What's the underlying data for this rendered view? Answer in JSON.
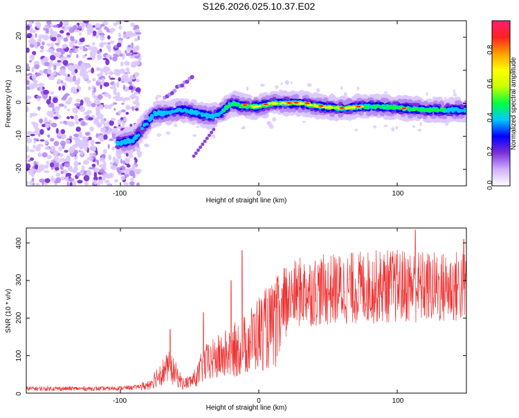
{
  "title": "S126.2026.025.10.37.E02",
  "chart_data": [
    {
      "type": "heatmap",
      "xlabel": "Height of straight line (km)",
      "ylabel": "Frequency (Hz)",
      "xlim": [
        -168,
        150
      ],
      "ylim": [
        -25,
        25
      ],
      "xticks": [
        -100,
        0,
        100
      ],
      "yticks": [
        -20,
        -10,
        0,
        10,
        20
      ],
      "colorbar": {
        "label": "Normalized spectral amplitude",
        "range": [
          0.0,
          0.96
        ],
        "ticks": [
          "0.0",
          "0.2",
          "0.4",
          "0.6",
          "0.8"
        ],
        "colors": [
          "#ffffff",
          "#d0b0ff",
          "#7b2fd8",
          "#0000ff",
          "#00c8ff",
          "#00ff40",
          "#c8ff00",
          "#ffff00",
          "#ffa000",
          "#ff2020",
          "#ff1f70"
        ]
      },
      "ridge": [
        {
          "x": -100,
          "f": -12
        },
        {
          "x": -90,
          "f": -11
        },
        {
          "x": -83,
          "f": -7
        },
        {
          "x": -75,
          "f": -3
        },
        {
          "x": -65,
          "f": -3
        },
        {
          "x": -55,
          "f": -2
        },
        {
          "x": -45,
          "f": -3
        },
        {
          "x": -35,
          "f": -4
        },
        {
          "x": -28,
          "f": -3
        },
        {
          "x": -20,
          "f": 0
        },
        {
          "x": -10,
          "f": -1
        },
        {
          "x": 0,
          "f": -1
        },
        {
          "x": 10,
          "f": 0
        },
        {
          "x": 20,
          "f": 0
        },
        {
          "x": 30,
          "f": 0
        },
        {
          "x": 45,
          "f": -1
        },
        {
          "x": 60,
          "f": -1.5
        },
        {
          "x": 75,
          "f": -1
        },
        {
          "x": 90,
          "f": -1
        },
        {
          "x": 105,
          "f": -1.5
        },
        {
          "x": 120,
          "f": -2
        },
        {
          "x": 135,
          "f": -2
        },
        {
          "x": 150,
          "f": -2
        }
      ]
    },
    {
      "type": "line",
      "xlabel": "Height of straight line (km)",
      "ylabel": "SNR (10 * v/v)",
      "xlim": [
        -168,
        150
      ],
      "ylim": [
        0,
        440
      ],
      "xticks": [
        -100,
        0,
        100
      ],
      "yticks": [
        0,
        100,
        200,
        300,
        400
      ],
      "series_color": "#ee3333",
      "envelope": [
        {
          "x": -168,
          "y": 12
        },
        {
          "x": -110,
          "y": 12
        },
        {
          "x": -90,
          "y": 15
        },
        {
          "x": -80,
          "y": 25
        },
        {
          "x": -72,
          "y": 60
        },
        {
          "x": -65,
          "y": 80
        },
        {
          "x": -60,
          "y": 60
        },
        {
          "x": -55,
          "y": 30
        },
        {
          "x": -50,
          "y": 35
        },
        {
          "x": -45,
          "y": 50
        },
        {
          "x": -40,
          "y": 90
        },
        {
          "x": -30,
          "y": 110
        },
        {
          "x": -20,
          "y": 130
        },
        {
          "x": -10,
          "y": 150
        },
        {
          "x": -5,
          "y": 170
        },
        {
          "x": 0,
          "y": 190
        },
        {
          "x": 10,
          "y": 210
        },
        {
          "x": 20,
          "y": 250
        },
        {
          "x": 30,
          "y": 270
        },
        {
          "x": 50,
          "y": 275
        },
        {
          "x": 70,
          "y": 280
        },
        {
          "x": 90,
          "y": 285
        },
        {
          "x": 110,
          "y": 285
        },
        {
          "x": 130,
          "y": 280
        },
        {
          "x": 150,
          "y": 285
        }
      ],
      "peaks": [
        {
          "x": -64,
          "y": 170
        },
        {
          "x": -40,
          "y": 215
        },
        {
          "x": -20,
          "y": 300
        },
        {
          "x": -12,
          "y": 380
        },
        {
          "x": 113,
          "y": 435
        },
        {
          "x": 148,
          "y": 410
        }
      ]
    }
  ]
}
